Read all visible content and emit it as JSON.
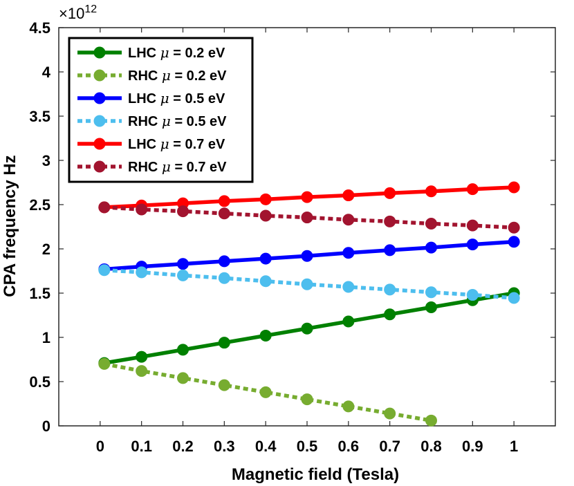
{
  "chart_data": {
    "type": "line",
    "title": "",
    "xlabel": "Magnetic field (Tesla)",
    "ylabel": "CPA frequency Hz",
    "y_exponent_base": "×10",
    "y_exponent_power": "12",
    "xlim": [
      -0.1,
      1.1
    ],
    "ylim": [
      0,
      4.5
    ],
    "xticks": [
      0,
      0.1,
      0.2,
      0.3,
      0.4,
      0.5,
      0.6,
      0.7,
      0.8,
      0.9,
      1
    ],
    "xtick_labels": [
      "0",
      "0.1",
      "0.2",
      "0.3",
      "0.4",
      "0.5",
      "0.6",
      "0.7",
      "0.8",
      "0.9",
      "1"
    ],
    "yticks": [
      0,
      0.5,
      1,
      1.5,
      2,
      2.5,
      3,
      3.5,
      4,
      4.5
    ],
    "ytick_labels": [
      "0",
      "0.5",
      "1",
      "1.5",
      "2",
      "2.5",
      "3",
      "3.5",
      "4",
      "4.5"
    ],
    "grid": false,
    "legend_position": "top-left",
    "series": [
      {
        "name_prefix": "LHC ",
        "mu": "μ",
        "name_suffix": " = 0.2 eV",
        "color": "#008000",
        "style": "solid",
        "x": [
          0.01,
          0.1,
          0.2,
          0.3,
          0.4,
          0.5,
          0.6,
          0.7,
          0.8,
          0.9,
          1.0
        ],
        "values": [
          0.71,
          0.78,
          0.86,
          0.94,
          1.02,
          1.1,
          1.18,
          1.26,
          1.34,
          1.42,
          1.5
        ]
      },
      {
        "name_prefix": "RHC ",
        "mu": "μ",
        "name_suffix": " = 0.2 eV",
        "color": "#77ac30",
        "style": "dotted",
        "x": [
          0.01,
          0.1,
          0.2,
          0.3,
          0.4,
          0.5,
          0.6,
          0.7,
          0.8
        ],
        "values": [
          0.7,
          0.62,
          0.54,
          0.46,
          0.38,
          0.3,
          0.22,
          0.14,
          0.06
        ]
      },
      {
        "name_prefix": "LHC ",
        "mu": "μ",
        "name_suffix": " = 0.5 eV",
        "color": "#0000ff",
        "style": "solid",
        "x": [
          0.01,
          0.1,
          0.2,
          0.3,
          0.4,
          0.5,
          0.6,
          0.7,
          0.8,
          0.9,
          1.0
        ],
        "values": [
          1.77,
          1.8,
          1.83,
          1.86,
          1.89,
          1.92,
          1.955,
          1.985,
          2.015,
          2.05,
          2.08
        ]
      },
      {
        "name_prefix": "RHC ",
        "mu": "μ",
        "name_suffix": " = 0.5 eV",
        "color": "#4dbeee",
        "style": "dotted",
        "x": [
          0.01,
          0.1,
          0.2,
          0.3,
          0.4,
          0.5,
          0.6,
          0.7,
          0.8,
          0.9,
          1.0
        ],
        "values": [
          1.76,
          1.735,
          1.7,
          1.67,
          1.635,
          1.6,
          1.57,
          1.54,
          1.51,
          1.48,
          1.445
        ]
      },
      {
        "name_prefix": "LHC ",
        "mu": "μ",
        "name_suffix": " = 0.7 eV",
        "color": "#ff0000",
        "style": "solid",
        "x": [
          0.01,
          0.1,
          0.2,
          0.3,
          0.4,
          0.5,
          0.6,
          0.7,
          0.8,
          0.9,
          1.0
        ],
        "values": [
          2.47,
          2.49,
          2.515,
          2.54,
          2.56,
          2.585,
          2.605,
          2.63,
          2.65,
          2.675,
          2.695
        ]
      },
      {
        "name_prefix": "RHC ",
        "mu": "μ",
        "name_suffix": " = 0.7 eV",
        "color": "#a2142f",
        "style": "dotted",
        "x": [
          0.01,
          0.1,
          0.2,
          0.3,
          0.4,
          0.5,
          0.6,
          0.7,
          0.8,
          0.9,
          1.0
        ],
        "values": [
          2.47,
          2.445,
          2.425,
          2.4,
          2.375,
          2.355,
          2.33,
          2.31,
          2.285,
          2.265,
          2.24
        ]
      }
    ]
  }
}
